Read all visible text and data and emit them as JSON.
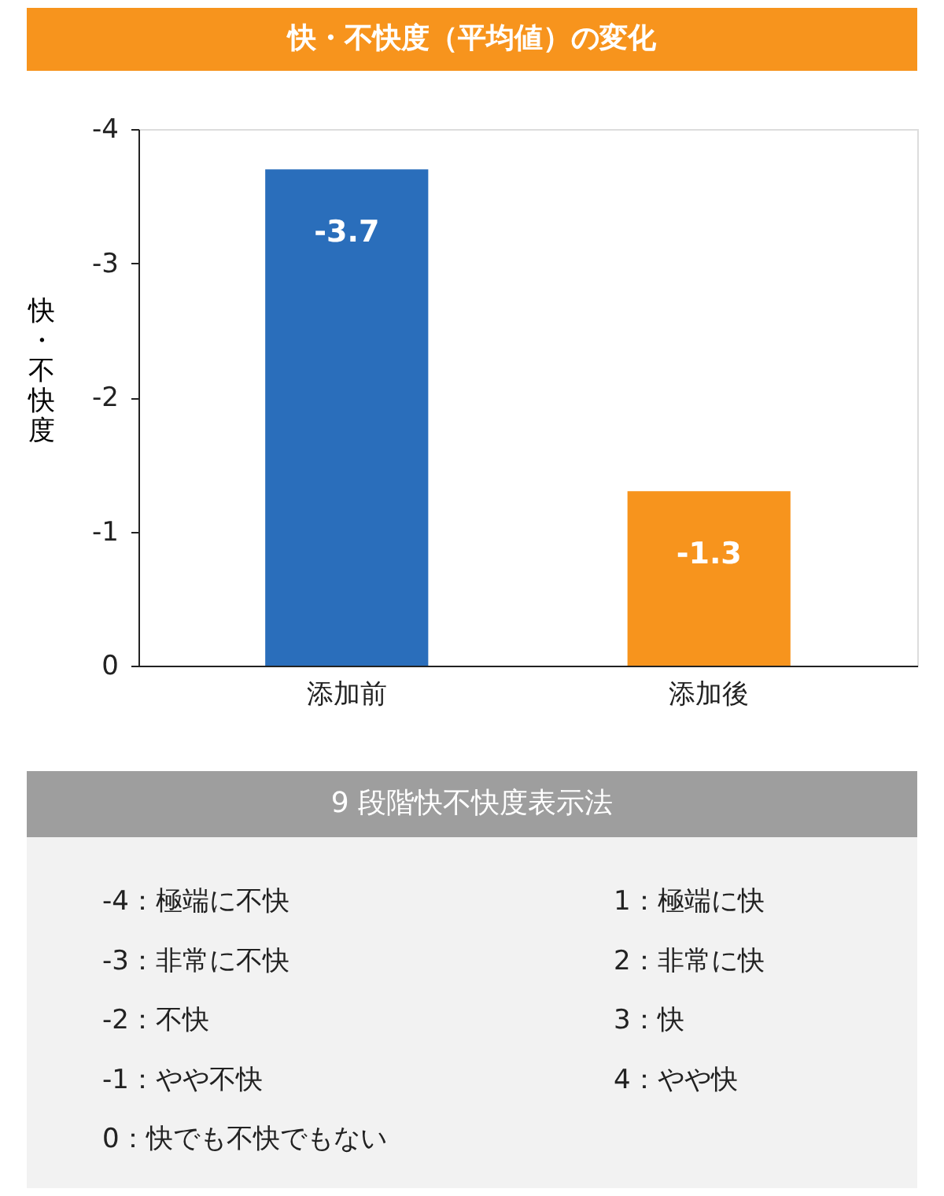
{
  "chart_data": {
    "type": "bar",
    "title": "快・不快度（平均値）の変化",
    "ylabel": "快・不快度",
    "categories": [
      "添加前",
      "添加後"
    ],
    "values": [
      -3.7,
      -1.3
    ],
    "colors": [
      "#2a6ebb",
      "#f7941d"
    ],
    "ylim": [
      0,
      -4
    ],
    "yticks": [
      0,
      -1,
      -2,
      -3,
      -4
    ],
    "grid": false,
    "data_labels": true,
    "annotations": [
      "9 段階快不快度表示法",
      "-4：極端に不快",
      "-3：非常に不快",
      "-2：不快",
      "-1：やや不快",
      "0：快でも不快でもない",
      "1：極端に快",
      "2：非常に快",
      "3：快",
      "4：やや快"
    ]
  }
}
